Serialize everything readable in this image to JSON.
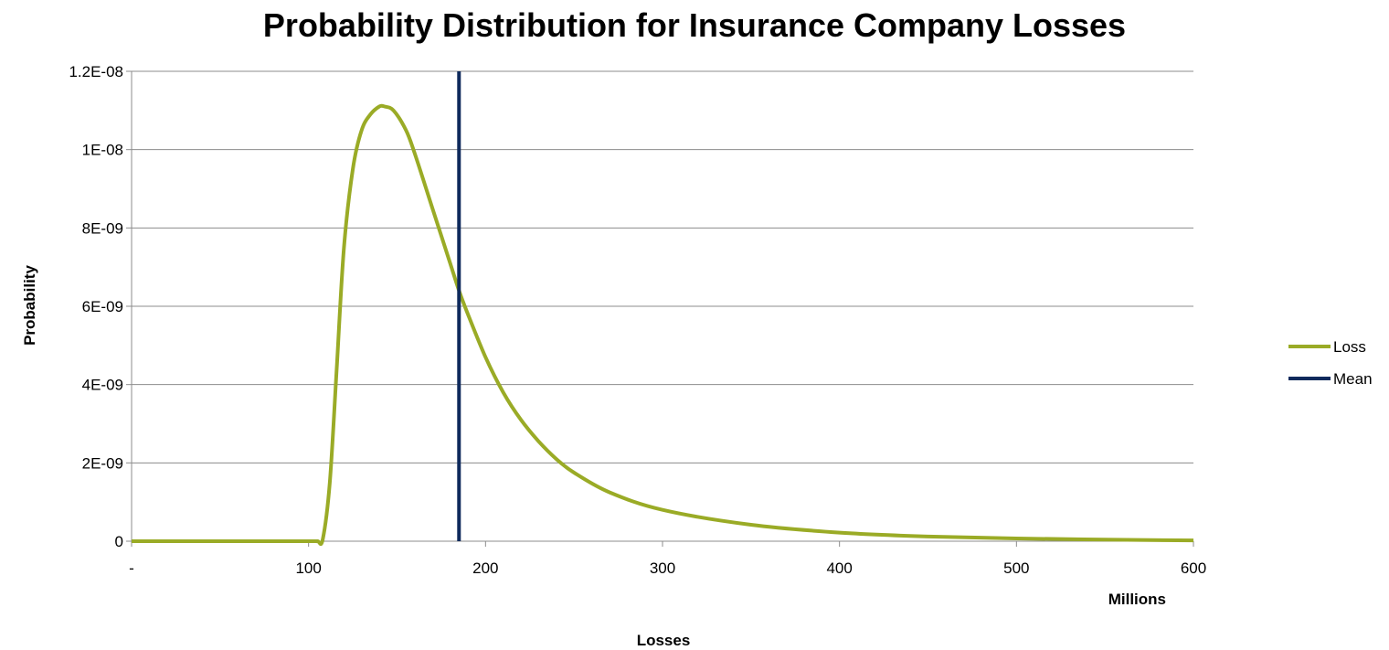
{
  "chart_data": {
    "type": "line",
    "title": "Probability Distribution for Insurance Company Losses",
    "xlabel": "Losses",
    "x_units_label": "Millions",
    "ylabel": "Probability",
    "xlim": [
      0,
      600
    ],
    "ylim": [
      0,
      1.2e-08
    ],
    "x_tick_labels": [
      "-",
      "100",
      "200",
      "300",
      "400",
      "500",
      "600"
    ],
    "x_tick_values": [
      0,
      100,
      200,
      300,
      400,
      500,
      600
    ],
    "y_tick_labels": [
      "0",
      "2E-09",
      "4E-09",
      "6E-09",
      "8E-09",
      "1E-08",
      "1.2E-08"
    ],
    "y_tick_values": [
      0,
      2e-09,
      4e-09,
      6e-09,
      8e-09,
      1e-08,
      1.2e-08
    ],
    "grid": true,
    "legend_position": "right",
    "series": [
      {
        "name": "Loss",
        "color": "#9aab26",
        "x": [
          0,
          50,
          100,
          105,
          108,
          112,
          116,
          120,
          125,
          130,
          135,
          140,
          143,
          148,
          155,
          160,
          170,
          180,
          185,
          190,
          200,
          210,
          220,
          230,
          240,
          250,
          270,
          300,
          350,
          400,
          450,
          500,
          550,
          600
        ],
        "y": [
          0,
          0,
          0,
          0,
          5e-11,
          1.5e-09,
          4.5e-09,
          7.5e-09,
          9.5e-09,
          1.05e-08,
          1.09e-08,
          1.11e-08,
          1.11e-08,
          1.1e-08,
          1.05e-08,
          9.9e-09,
          8.5e-09,
          7.1e-09,
          6.4e-09,
          5.8e-09,
          4.7e-09,
          3.8e-09,
          3.1e-09,
          2.55e-09,
          2.1e-09,
          1.75e-09,
          1.25e-09,
          8e-10,
          4.2e-10,
          2.2e-10,
          1.2e-10,
          7e-11,
          4e-11,
          2e-11
        ]
      },
      {
        "name": "Mean",
        "color": "#0f2a5c",
        "x": [
          185,
          185
        ],
        "y": [
          0,
          1.2e-08
        ]
      }
    ]
  }
}
